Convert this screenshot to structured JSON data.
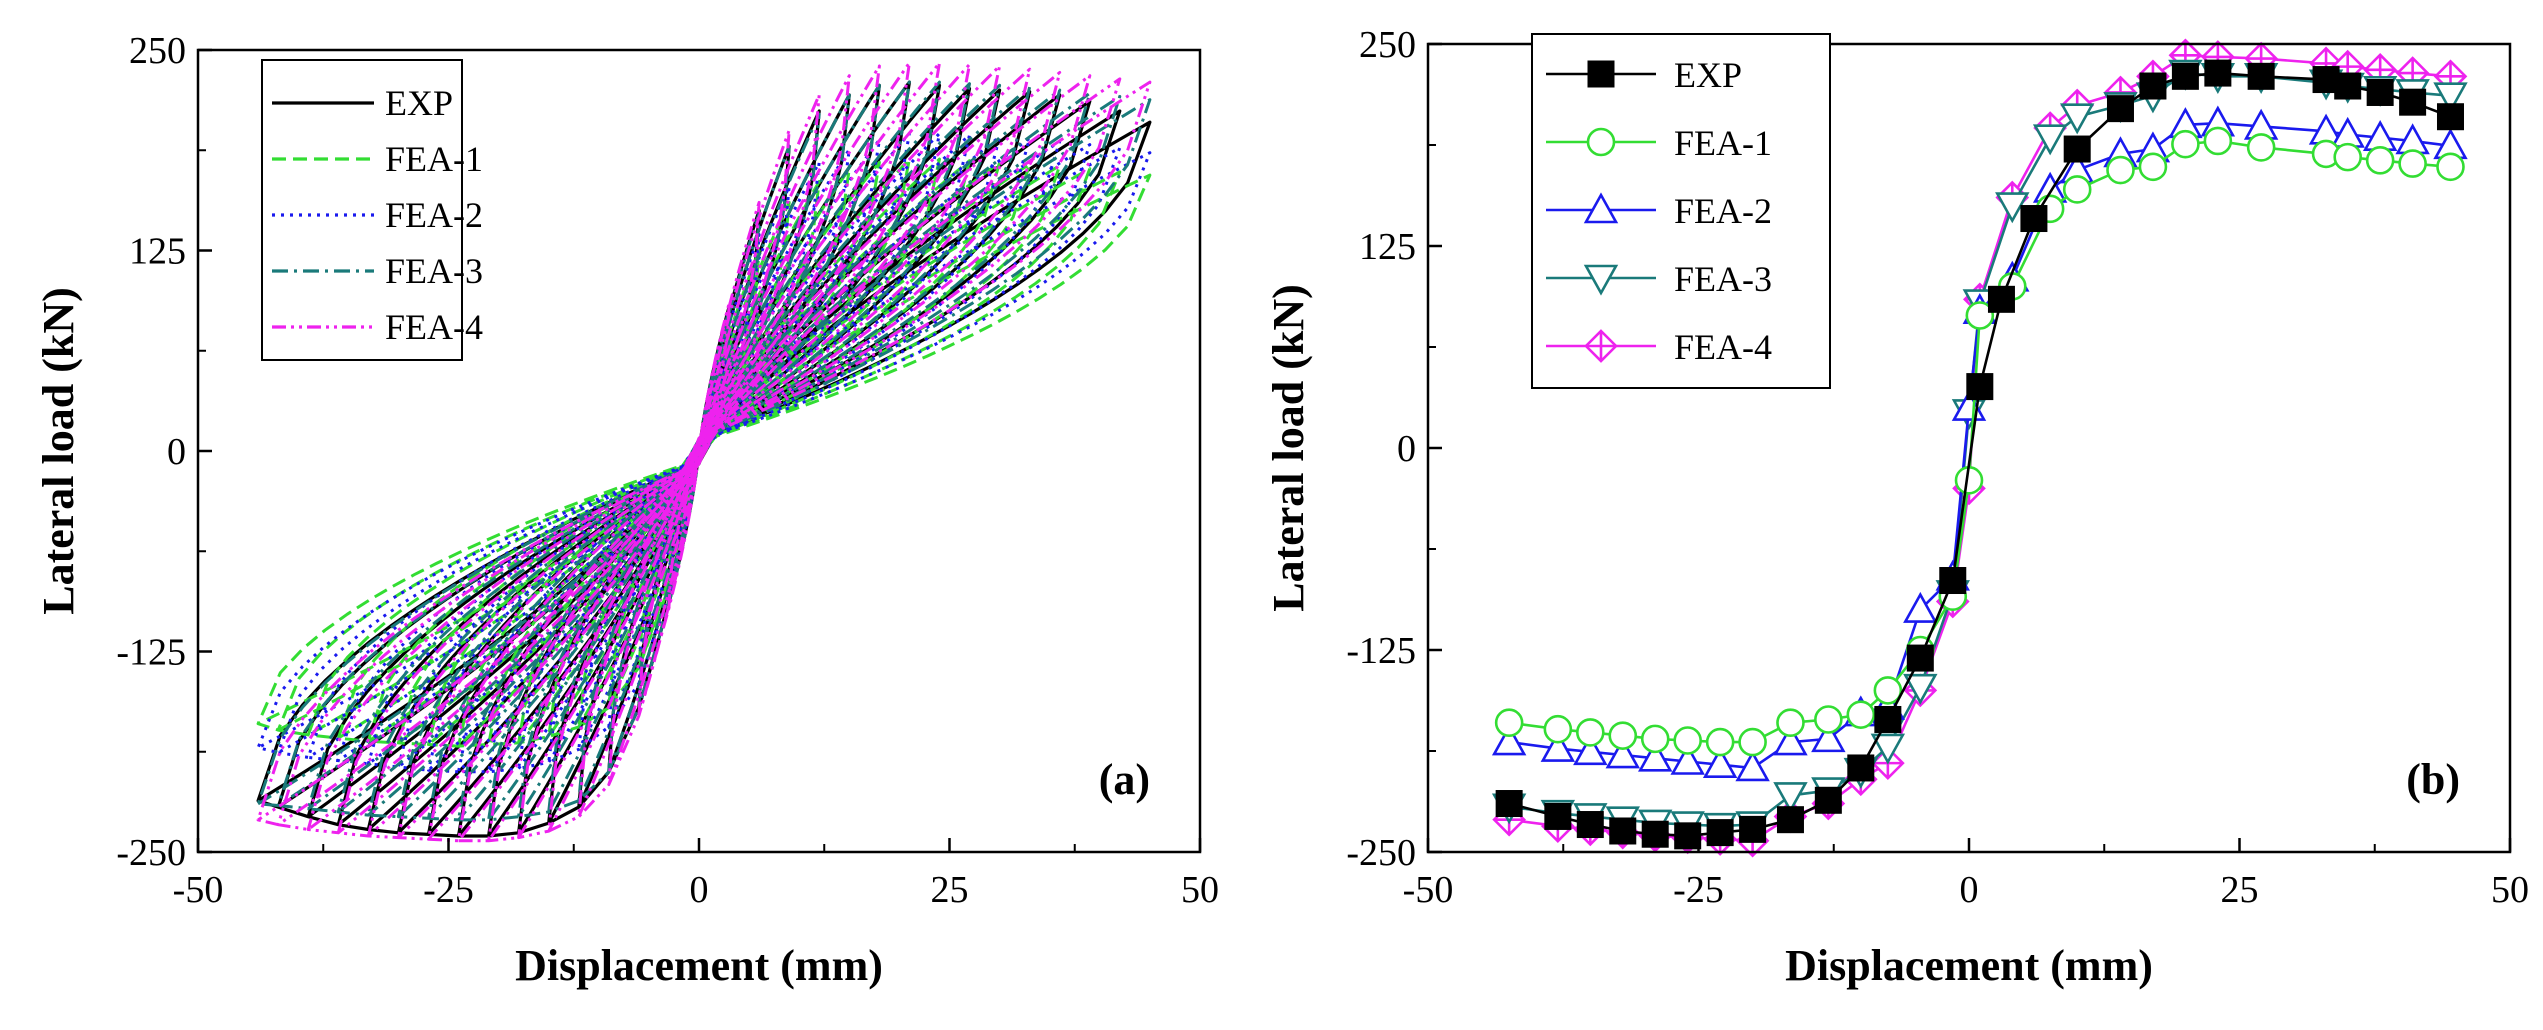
{
  "chart_data": [
    {
      "type": "line",
      "panel": "hysteresis",
      "panel_label": "(a)",
      "xlabel": "Displacement (mm)",
      "ylabel": "Lateral load (kN)",
      "xlim": [
        -50,
        50
      ],
      "ylim": [
        -250,
        250
      ],
      "xticks": [
        -50,
        -25,
        0,
        25,
        50
      ],
      "yticks": [
        -250,
        -125,
        0,
        125,
        250
      ],
      "legend_position": "top-left",
      "amplitudes": [
        3,
        6,
        9,
        12,
        15,
        18,
        21,
        24,
        27,
        30,
        33,
        36,
        39,
        42,
        45
      ],
      "series": [
        {
          "name": "EXP",
          "color": "#000000",
          "dash": "solid",
          "skeleton": {
            "pos_d": [
              0,
              3,
              6,
              9,
              12,
              15,
              18,
              21,
              24,
              27,
              30,
              33,
              36,
              39,
              42,
              45,
              47
            ],
            "pos_f": [
              0,
              90,
              150,
              190,
              212,
              222,
              228,
              230,
              228,
              226,
              225,
              224,
              222,
              218,
              212,
              205,
              202
            ],
            "neg_d": [
              0,
              -3,
              -6,
              -9,
              -12,
              -15,
              -18,
              -21,
              -24,
              -27,
              -30,
              -33,
              -36,
              -39,
              -42,
              -44
            ],
            "neg_f": [
              0,
              -95,
              -160,
              -200,
              -222,
              -232,
              -238,
              -240,
              -240,
              -239,
              -238,
              -236,
              -233,
              -228,
              -222,
              -218
            ]
          }
        },
        {
          "name": "FEA-1",
          "color": "#33dd33",
          "dash": "dashed",
          "skeleton": {
            "pos_d": [
              0,
              3,
              6,
              9,
              12,
              15,
              18,
              21,
              24,
              27,
              30,
              33,
              36,
              39,
              42,
              45,
              47
            ],
            "pos_f": [
              0,
              78,
              125,
              155,
              168,
              176,
              180,
              182,
              182,
              181,
              180,
              179,
              178,
              176,
              174,
              172,
              170
            ],
            "neg_d": [
              0,
              -3,
              -6,
              -9,
              -12,
              -15,
              -18,
              -21,
              -24,
              -27,
              -30,
              -33,
              -36,
              -39,
              -42,
              -44
            ],
            "neg_f": [
              0,
              -85,
              -135,
              -160,
              -172,
              -178,
              -182,
              -183,
              -184,
              -183,
              -182,
              -181,
              -179,
              -177,
              -174,
              -170
            ]
          }
        },
        {
          "name": "FEA-2",
          "color": "#1a1aee",
          "dash": "dotted",
          "skeleton": {
            "pos_d": [
              0,
              3,
              6,
              9,
              12,
              15,
              18,
              21,
              24,
              27,
              30,
              33,
              36,
              39,
              42,
              45,
              47
            ],
            "pos_f": [
              0,
              82,
              135,
              165,
              180,
              188,
              194,
              198,
              198,
              197,
              196,
              195,
              193,
              191,
              189,
              186,
              184
            ],
            "neg_d": [
              0,
              -3,
              -6,
              -9,
              -12,
              -15,
              -18,
              -21,
              -24,
              -27,
              -30,
              -33,
              -36,
              -39,
              -42,
              -44
            ],
            "neg_f": [
              0,
              -90,
              -145,
              -172,
              -186,
              -194,
              -198,
              -200,
              -200,
              -199,
              -197,
              -195,
              -193,
              -191,
              -188,
              -185
            ]
          }
        },
        {
          "name": "FEA-3",
          "color": "#1a7a7a",
          "dash": "dashdot",
          "skeleton": {
            "pos_d": [
              0,
              3,
              6,
              9,
              12,
              15,
              18,
              21,
              24,
              27,
              30,
              33,
              36,
              39,
              42,
              45,
              47
            ],
            "pos_f": [
              0,
              88,
              148,
              190,
              210,
              222,
              228,
              230,
              230,
              229,
              228,
              227,
              225,
              223,
              221,
              219,
              218
            ],
            "neg_d": [
              0,
              -3,
              -6,
              -9,
              -12,
              -15,
              -18,
              -21,
              -24,
              -27,
              -30,
              -33,
              -36,
              -39,
              -42,
              -44
            ],
            "neg_f": [
              0,
              -95,
              -160,
              -200,
              -218,
              -225,
              -228,
              -230,
              -230,
              -229,
              -228,
              -227,
              -225,
              -223,
              -221,
              -220
            ]
          }
        },
        {
          "name": "FEA-4",
          "color": "#ee22ee",
          "dash": "dashdotdot",
          "skeleton": {
            "pos_d": [
              0,
              3,
              6,
              9,
              12,
              15,
              18,
              21,
              24,
              27,
              30,
              33,
              36,
              39,
              42,
              45,
              47
            ],
            "pos_f": [
              0,
              92,
              155,
              200,
              222,
              234,
              240,
              242,
              242,
              241,
              240,
              238,
              236,
              234,
              232,
              230,
              229
            ],
            "neg_d": [
              0,
              -3,
              -6,
              -9,
              -12,
              -15,
              -18,
              -21,
              -24,
              -27,
              -30,
              -33,
              -36,
              -39,
              -42,
              -44
            ],
            "neg_f": [
              0,
              -98,
              -165,
              -208,
              -228,
              -237,
              -241,
              -243,
              -243,
              -242,
              -241,
              -240,
              -238,
              -236,
              -233,
              -230
            ]
          }
        }
      ]
    },
    {
      "type": "line",
      "panel": "skeleton",
      "panel_label": "(b)",
      "xlabel": "Displacement (mm)",
      "ylabel": "Lateral load (kN)",
      "xlim": [
        -50,
        50
      ],
      "ylim": [
        -250,
        250
      ],
      "xticks": [
        -50,
        -25,
        0,
        25,
        50
      ],
      "yticks": [
        -250,
        -125,
        0,
        125,
        250
      ],
      "legend_position": "top-left",
      "series": [
        {
          "name": "EXP",
          "color": "#000000",
          "marker": "square-filled",
          "x": [
            -42.5,
            -38,
            -35,
            -32,
            -29,
            -26,
            -23,
            -20,
            -16.5,
            -13,
            -10,
            -7.5,
            -4.5,
            -1.5,
            1,
            3,
            6,
            10,
            14,
            17,
            20,
            23,
            27,
            33,
            35,
            38,
            41,
            44.5
          ],
          "y": [
            -220,
            -228,
            -233,
            -237,
            -239,
            -240,
            -238,
            -236,
            -230,
            -218,
            -198,
            -168,
            -130,
            -82,
            38,
            92,
            142,
            185,
            210,
            224,
            230,
            232,
            230,
            228,
            224,
            220,
            214,
            205
          ]
        },
        {
          "name": "FEA-1",
          "color": "#33dd33",
          "marker": "circle",
          "x": [
            -42.5,
            -38,
            -35,
            -32,
            -29,
            -26,
            -23,
            -20,
            -16.5,
            -13,
            -10,
            -7.5,
            -4.5,
            -1.5,
            0,
            1,
            4,
            7.5,
            10,
            14,
            17,
            20,
            23,
            27,
            33,
            35,
            38,
            41,
            44.5
          ],
          "y": [
            -170,
            -174,
            -176,
            -178,
            -180,
            -181,
            -182,
            -182,
            -170,
            -168,
            -165,
            -150,
            -125,
            -92,
            -20,
            82,
            100,
            148,
            160,
            172,
            174,
            188,
            190,
            186,
            182,
            180,
            178,
            176,
            174
          ]
        },
        {
          "name": "FEA-2",
          "color": "#1a1aee",
          "marker": "triangle-up",
          "x": [
            -42.5,
            -38,
            -35,
            -32,
            -29,
            -26,
            -23,
            -20,
            -16.5,
            -13,
            -10,
            -7.5,
            -4.5,
            -1.5,
            0,
            1,
            4,
            7.5,
            10,
            14,
            17,
            20,
            23,
            27,
            33,
            35,
            38,
            41,
            44.5
          ],
          "y": [
            -182,
            -186,
            -188,
            -190,
            -192,
            -194,
            -196,
            -198,
            -182,
            -180,
            -164,
            -160,
            -100,
            -80,
            25,
            85,
            105,
            160,
            172,
            182,
            185,
            200,
            201,
            199,
            196,
            194,
            192,
            190,
            187
          ]
        },
        {
          "name": "FEA-3",
          "color": "#1a7a7a",
          "marker": "triangle-down",
          "x": [
            -42.5,
            -38,
            -35,
            -32,
            -29,
            -26,
            -23,
            -20,
            -16.5,
            -13,
            -10,
            -7.5,
            -4.5,
            -1.5,
            0,
            1,
            4,
            7.5,
            10,
            14,
            17,
            20,
            23,
            27,
            33,
            35,
            38,
            41,
            44.5
          ],
          "y": [
            -222,
            -226,
            -228,
            -230,
            -232,
            -233,
            -234,
            -233,
            -215,
            -212,
            -200,
            -185,
            -148,
            -90,
            22,
            90,
            150,
            192,
            205,
            212,
            218,
            232,
            230,
            230,
            226,
            224,
            222,
            220,
            218
          ]
        },
        {
          "name": "FEA-4",
          "color": "#ee22ee",
          "marker": "diamond-plus",
          "x": [
            -42.5,
            -38,
            -35,
            -32,
            -29,
            -26,
            -23,
            -20,
            -16.5,
            -13,
            -10,
            -7.5,
            -4.5,
            -1.5,
            0,
            1,
            4,
            7.5,
            10,
            14,
            17,
            20,
            23,
            27,
            33,
            35,
            38,
            41,
            44.5
          ],
          "y": [
            -230,
            -234,
            -236,
            -238,
            -240,
            -241,
            -242,
            -243,
            -228,
            -220,
            -205,
            -195,
            -150,
            -95,
            -25,
            92,
            155,
            198,
            212,
            220,
            230,
            243,
            242,
            241,
            238,
            236,
            234,
            232,
            230
          ]
        }
      ]
    }
  ]
}
